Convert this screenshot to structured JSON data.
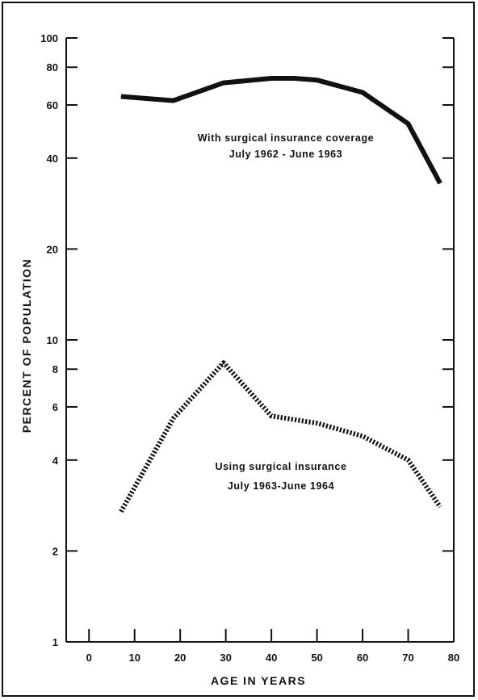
{
  "chart_data": {
    "type": "line",
    "title": "",
    "xlabel": "AGE IN YEARS",
    "ylabel": "PERCENT OF POPULATION",
    "y_scale": "log",
    "xlim": [
      -5,
      80
    ],
    "ylim": [
      1,
      100
    ],
    "grid": false,
    "x_ticks": [
      "0",
      "10",
      "20",
      "30",
      "40",
      "50",
      "60",
      "70",
      "80"
    ],
    "y_ticks": [
      "1",
      "2",
      "4",
      "6",
      "8",
      "10",
      "20",
      "40",
      "60",
      "80",
      "100"
    ],
    "series": [
      {
        "name": "With surgical insurance coverage July 1962 - June 1963",
        "style": "solid",
        "color": "#111111",
        "x": [
          7,
          18.5,
          29.5,
          40,
          45,
          50,
          60,
          70,
          77
        ],
        "y": [
          64,
          62,
          71,
          73.5,
          73.5,
          72.5,
          66,
          52,
          33
        ]
      },
      {
        "name": "Using surgical insurance July 1963-June 1964",
        "style": "dotted",
        "color": "#111111",
        "x": [
          7,
          18.5,
          29.5,
          40,
          50,
          60,
          70,
          77
        ],
        "y": [
          2.7,
          5.5,
          8.4,
          5.6,
          5.3,
          4.8,
          4.0,
          2.8
        ]
      }
    ],
    "annotations": [
      {
        "lines": [
          "With surgical insurance coverage",
          "July 1962 - June 1963"
        ]
      },
      {
        "lines": [
          "Using surgical insurance",
          "July 1963-June 1964"
        ]
      }
    ]
  }
}
